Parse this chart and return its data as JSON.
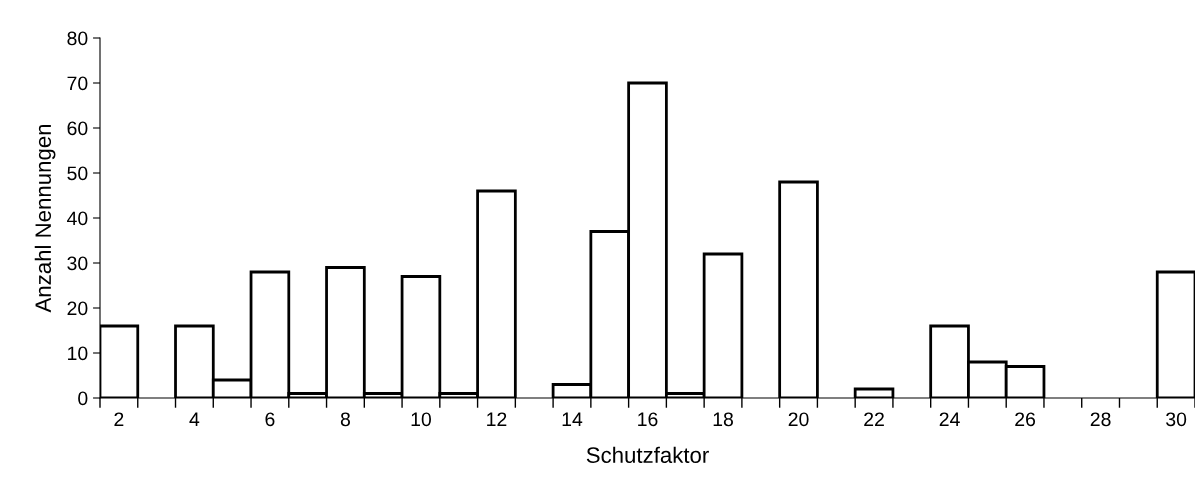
{
  "chart_data": {
    "type": "bar",
    "xlabel": "Schutzfaktor",
    "ylabel": "Anzahl Nennungen",
    "categories": [
      "2",
      null,
      "4",
      null,
      "6",
      null,
      "8",
      null,
      "10",
      null,
      "12",
      null,
      "14",
      null,
      "16",
      null,
      "18",
      null,
      "20",
      null,
      "22",
      null,
      "24",
      null,
      "26",
      null,
      "28",
      null,
      "30"
    ],
    "values": [
      16,
      null,
      16,
      4,
      28,
      1,
      29,
      1,
      27,
      1,
      46,
      null,
      3,
      37,
      70,
      1,
      32,
      null,
      48,
      null,
      2,
      null,
      16,
      8,
      7,
      null,
      null,
      null,
      28
    ],
    "color": "#ffffff",
    "ylim": [
      0,
      80
    ],
    "yticks": [
      0,
      10,
      20,
      30,
      40,
      50,
      60,
      70,
      80
    ],
    "grid": false,
    "legend": false
  }
}
